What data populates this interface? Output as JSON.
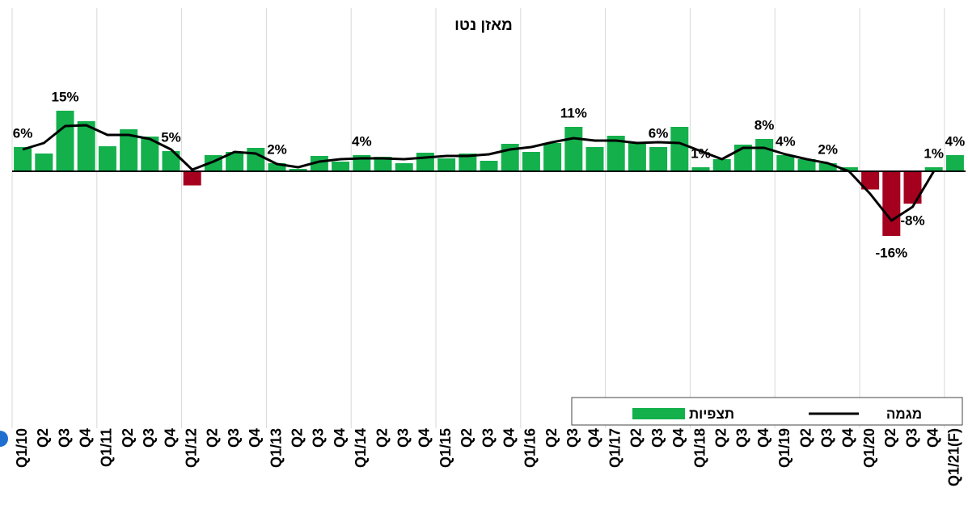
{
  "chart_data": {
    "type": "bar",
    "title": "מאזן נטו",
    "categories": [
      "Q1/10",
      "Q2",
      "Q3",
      "Q4",
      "Q1/11",
      "Q2",
      "Q3",
      "Q4",
      "Q1/12",
      "Q2",
      "Q3",
      "Q4",
      "Q1/13",
      "Q2",
      "Q3",
      "Q4",
      "Q1/14",
      "Q2",
      "Q3",
      "Q4",
      "Q1/15",
      "Q2",
      "Q3",
      "Q4",
      "Q1/16",
      "Q2",
      "Q3",
      "Q4",
      "Q1/17",
      "Q2",
      "Q3",
      "Q4",
      "Q1/18",
      "Q2",
      "Q3",
      "Q4",
      "Q1/19",
      "Q2",
      "Q3",
      "Q4",
      "Q1/20",
      "Q2",
      "Q3",
      "Q4",
      "Q1/21(F)"
    ],
    "series": [
      {
        "name": "תצפיות",
        "type": "bar",
        "color": "#13b04b",
        "negative_color": "#a6001f",
        "values": [
          6,
          4.4,
          15,
          12.4,
          6.2,
          10.4,
          8.6,
          5,
          -3.5,
          4,
          4.8,
          5.8,
          2,
          0.6,
          3.8,
          2.4,
          4,
          3.6,
          2,
          4.6,
          3.2,
          4.4,
          2.6,
          6.8,
          4.8,
          7,
          11,
          6,
          8.8,
          7.2,
          6,
          11,
          1,
          3,
          6.6,
          8,
          4,
          3,
          2,
          1,
          -4.5,
          -16,
          -8,
          1,
          4
        ],
        "value_labels": [
          "6%",
          null,
          "15%",
          null,
          null,
          null,
          null,
          "5%",
          null,
          null,
          null,
          null,
          "2%",
          null,
          null,
          null,
          "4%",
          null,
          null,
          null,
          null,
          null,
          null,
          null,
          null,
          null,
          "11%",
          null,
          null,
          null,
          "6%",
          null,
          "1%",
          null,
          null,
          "8%",
          "4%",
          null,
          "2%",
          null,
          null,
          "-16%",
          "-8%",
          "1%",
          "4%"
        ]
      },
      {
        "name": "מגמה",
        "type": "line",
        "color": "#000000",
        "values": [
          5.4,
          7,
          11.2,
          11.4,
          9,
          9,
          8,
          5.4,
          0.4,
          2.4,
          4.8,
          4.4,
          1.8,
          1,
          2.4,
          3,
          3.2,
          3.2,
          3,
          3.4,
          3.8,
          3.8,
          4.2,
          5.4,
          6,
          7.2,
          8.2,
          7.6,
          7.6,
          7,
          7.2,
          7,
          5,
          3,
          5.8,
          5.8,
          4.2,
          3,
          2,
          0,
          -5.6,
          -12.2,
          -8.8,
          0,
          null
        ]
      }
    ],
    "ylim": [
      -55.6,
      24.4
    ],
    "legend": "bottom-right"
  }
}
